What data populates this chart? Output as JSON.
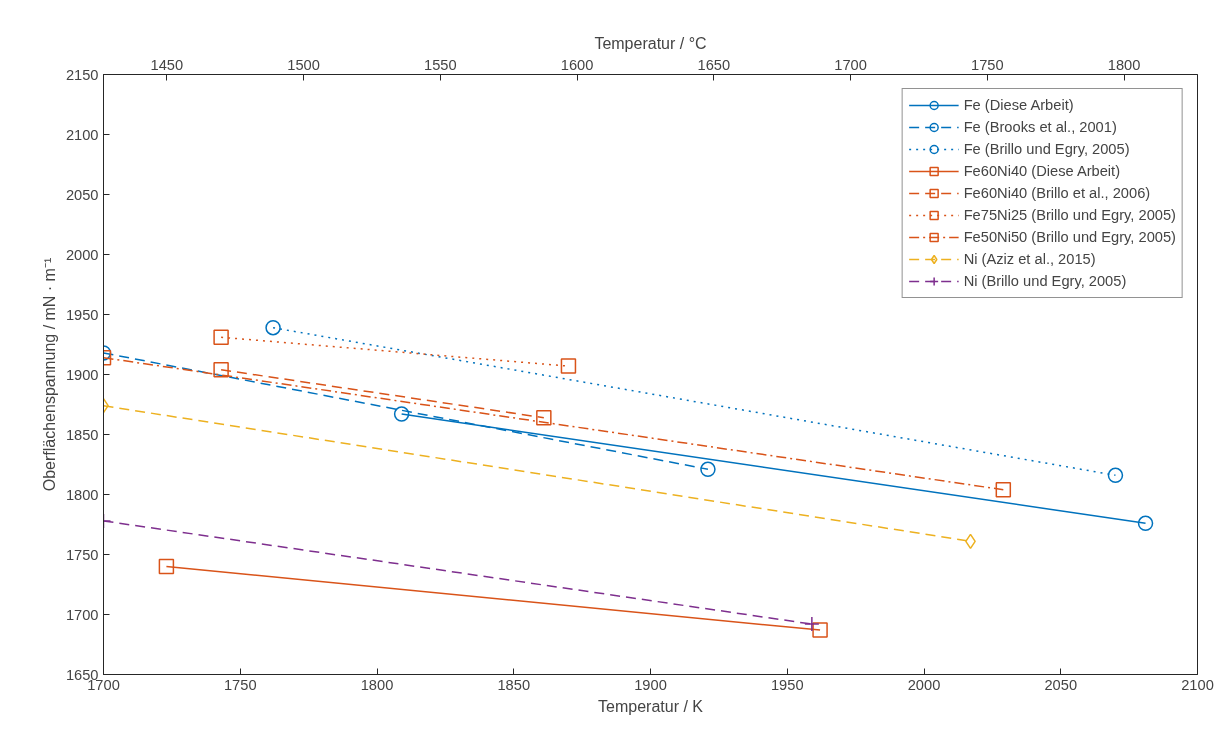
{
  "chart_data": {
    "type": "line",
    "xlabel": "Temperatur / K",
    "ylabel": "Oberflächenspannung / mN · m⁻¹",
    "x2label": "Temperatur / °C",
    "xlim": [
      1700,
      2100
    ],
    "xticks": [
      1700,
      1750,
      1800,
      1850,
      1900,
      1950,
      2000,
      2050,
      2100
    ],
    "ylim": [
      1650,
      2150
    ],
    "yticks": [
      1650,
      1700,
      1750,
      1800,
      1850,
      1900,
      1950,
      2000,
      2050,
      2100,
      2150
    ],
    "x2lim": [
      1426.85,
      1826.85
    ],
    "x2ticks": [
      1450,
      1500,
      1550,
      1600,
      1650,
      1700,
      1750,
      1800
    ],
    "grid": false,
    "legend": "top right",
    "series": [
      {
        "name": "Fe (Diese Arbeit)",
        "color": "#0072bd",
        "marker": "circle",
        "line_style": "solid",
        "x": [
          1809,
          2081
        ],
        "values": [
          1867,
          1776
        ]
      },
      {
        "name": "Fe (Brooks et al., 2001)",
        "color": "#0072bd",
        "marker": "circle",
        "line_style": "dashed",
        "x": [
          1700,
          1921
        ],
        "values": [
          1918,
          1821
        ]
      },
      {
        "name": "Fe (Brillo und Egry, 2005)",
        "color": "#0072bd",
        "marker": "circle",
        "line_style": "dotted",
        "x": [
          1762,
          2070
        ],
        "values": [
          1939,
          1816
        ]
      },
      {
        "name": "Fe60Ni40 (Diese Arbeit)",
        "color": "#d95319",
        "marker": "square",
        "line_style": "solid",
        "x": [
          1723,
          1962
        ],
        "values": [
          1740,
          1687
        ]
      },
      {
        "name": "Fe60Ni40 (Brillo et al., 2006)",
        "color": "#d95319",
        "marker": "square",
        "line_style": "dashed",
        "x": [
          1743,
          1861
        ],
        "values": [
          1904,
          1864
        ]
      },
      {
        "name": "Fe75Ni25 (Brillo und Egry, 2005)",
        "color": "#d95319",
        "marker": "square",
        "line_style": "dotted",
        "x": [
          1743,
          1870
        ],
        "values": [
          1931,
          1907
        ]
      },
      {
        "name": "Fe50Ni50 (Brillo und Egry, 2005)",
        "color": "#d95319",
        "marker": "square",
        "line_style": "dashdot",
        "x": [
          1700,
          2029
        ],
        "values": [
          1914,
          1804
        ]
      },
      {
        "name": "Ni (Aziz et al., 2015)",
        "color": "#edb120",
        "marker": "diamond",
        "line_style": "dashed",
        "x": [
          1700,
          2017
        ],
        "values": [
          1874,
          1761
        ]
      },
      {
        "name": "Ni (Brillo und Egry, 2005)",
        "color": "#7e2f8e",
        "marker": "cross",
        "line_style": "dashed",
        "x": [
          1700,
          1959
        ],
        "values": [
          1778,
          1692
        ]
      }
    ]
  }
}
